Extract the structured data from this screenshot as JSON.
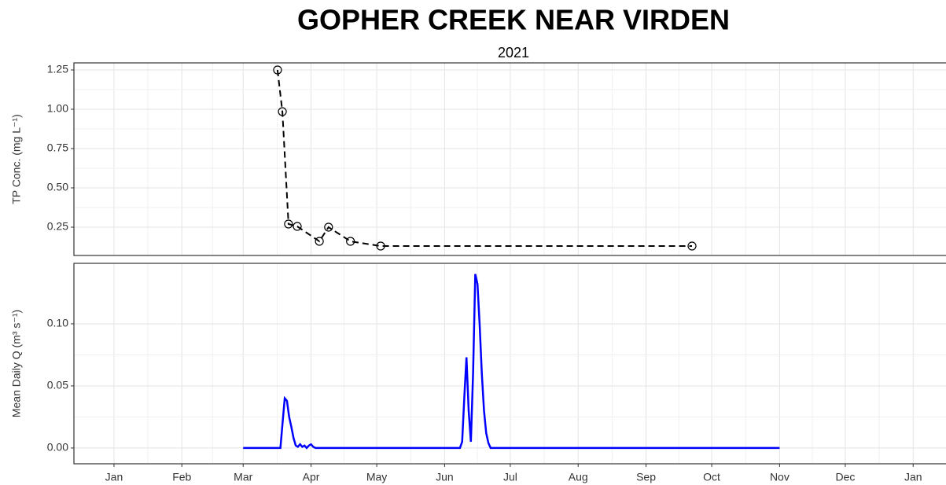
{
  "chart_data": [
    {
      "type": "line",
      "title": "GOPHER CREEK NEAR VIRDEN",
      "subtitle": "2021",
      "y_label": "TP Conc. (mg L⁻¹)",
      "series": [
        {
          "name": "TP",
          "color": "#000000",
          "x": [
            74.7,
            76.9,
            79.7,
            83.7,
            93.8,
            98,
            108,
            121.8,
            264
          ],
          "values": [
            1.25,
            0.985,
            0.27,
            0.255,
            0.16,
            0.25,
            0.16,
            0.13,
            0.13
          ]
        }
      ],
      "dashed": true,
      "markers": true,
      "xlim": [
        -18.3,
        380
      ],
      "ylim": [
        0.07,
        1.295
      ],
      "yticks": [
        0.25,
        {
          "value": 0.5,
          "label": "0.50"
        },
        0.75,
        {
          "value": 1,
          "label": "1.00"
        },
        1.25
      ],
      "grid": true
    },
    {
      "type": "line",
      "y_label": "Mean Daily Q (m³ s⁻¹)",
      "series": [
        {
          "name": "Q",
          "color": "#0000ff",
          "x": [
            59,
            76,
            77,
            78,
            79,
            80,
            81,
            82,
            83,
            84,
            85,
            86,
            87,
            88,
            89,
            90,
            91,
            92,
            158,
            159,
            160,
            161,
            162,
            163,
            164,
            165,
            166,
            167,
            168,
            169,
            170,
            171,
            172,
            304
          ],
          "values": [
            0,
            0,
            0.02,
            0.04,
            0.038,
            0.025,
            0.017,
            0.008,
            0.002,
            0.001,
            0.003,
            0.001,
            0.002,
            0,
            0.002,
            0.003,
            0.001,
            0,
            0,
            0.005,
            0.04,
            0.073,
            0.03,
            0.005,
            0.06,
            0.14,
            0.132,
            0.1,
            0.06,
            0.03,
            0.012,
            0.004,
            0,
            0
          ]
        }
      ],
      "dashed": false,
      "markers": false,
      "xlim": [
        -18.3,
        380
      ],
      "ylim": [
        -0.0127,
        0.1487
      ],
      "yticks": [
        {
          "value": 0,
          "label": "0.00"
        },
        0.05,
        {
          "value": 0.1,
          "label": "0.10"
        }
      ],
      "xticks": [
        {
          "value": 0,
          "label": "Jan"
        },
        {
          "value": 31,
          "label": "Feb"
        },
        {
          "value": 59,
          "label": "Mar"
        },
        {
          "value": 90,
          "label": "Apr"
        },
        {
          "value": 120,
          "label": "May"
        },
        {
          "value": 151,
          "label": "Jun"
        },
        {
          "value": 181,
          "label": "Jul"
        },
        {
          "value": 212,
          "label": "Aug"
        },
        {
          "value": 243,
          "label": "Sep"
        },
        {
          "value": 273,
          "label": "Oct"
        },
        {
          "value": 304,
          "label": "Nov"
        },
        {
          "value": 334,
          "label": "Dec"
        },
        {
          "value": 365,
          "label": "Jan"
        }
      ],
      "grid": true
    }
  ]
}
